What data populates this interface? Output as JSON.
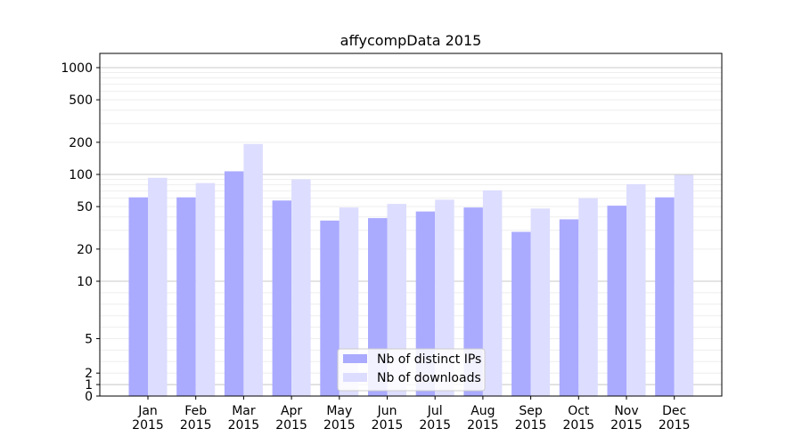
{
  "chart_data": {
    "type": "bar",
    "title": "affycompData 2015",
    "xlabel": "",
    "ylabel": "",
    "y_scale": "symlog",
    "ylim": [
      0,
      1200
    ],
    "yticks": [
      0,
      1,
      2,
      5,
      10,
      20,
      50,
      100,
      200,
      500,
      1000
    ],
    "categories": [
      [
        "Jan",
        "2015"
      ],
      [
        "Feb",
        "2015"
      ],
      [
        "Mar",
        "2015"
      ],
      [
        "Apr",
        "2015"
      ],
      [
        "May",
        "2015"
      ],
      [
        "Jun",
        "2015"
      ],
      [
        "Jul",
        "2015"
      ],
      [
        "Aug",
        "2015"
      ],
      [
        "Sep",
        "2015"
      ],
      [
        "Oct",
        "2015"
      ],
      [
        "Nov",
        "2015"
      ],
      [
        "Dec",
        "2015"
      ]
    ],
    "series": [
      {
        "name": "Nb of distinct IPs",
        "color": "#aaaaff",
        "values": [
          61,
          61,
          107,
          57,
          37,
          39,
          45,
          49,
          29,
          38,
          51,
          61
        ]
      },
      {
        "name": "Nb of downloads",
        "color": "#ddddff",
        "values": [
          93,
          83,
          193,
          90,
          49,
          53,
          58,
          71,
          48,
          60,
          81,
          99
        ]
      }
    ],
    "legend": "lower-center",
    "grid": true
  }
}
